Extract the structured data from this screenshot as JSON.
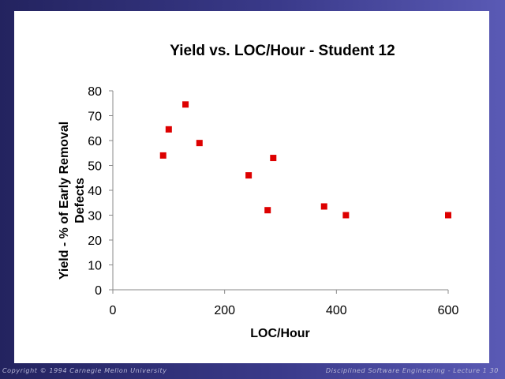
{
  "slide": {
    "footer_left": "Copyright © 1994 Carnegie Mellon University",
    "footer_right": "Disciplined Software Engineering - Lecture 1   30",
    "colors": {
      "background": "#2f2f78",
      "marker": "#dd0000",
      "axis": "#888888"
    }
  },
  "chart_data": {
    "type": "scatter",
    "title": "Yield vs. LOC/Hour - Student 12",
    "xlabel": "LOC/Hour",
    "ylabel_lines": [
      "Yield - % of Early Removal",
      "Defects"
    ],
    "xlim": [
      0,
      600
    ],
    "ylim": [
      0,
      80
    ],
    "xticks": [
      0,
      200,
      400,
      600
    ],
    "yticks": [
      0,
      10,
      20,
      30,
      40,
      50,
      60,
      70,
      80
    ],
    "grid": false,
    "legend": "none",
    "marker": "square",
    "points": [
      {
        "x": 90,
        "y": 54
      },
      {
        "x": 100,
        "y": 64.5
      },
      {
        "x": 130,
        "y": 74.5
      },
      {
        "x": 155,
        "y": 59
      },
      {
        "x": 243,
        "y": 46
      },
      {
        "x": 277,
        "y": 32
      },
      {
        "x": 287,
        "y": 53
      },
      {
        "x": 378,
        "y": 33.5
      },
      {
        "x": 417,
        "y": 30
      },
      {
        "x": 600,
        "y": 30
      }
    ]
  }
}
